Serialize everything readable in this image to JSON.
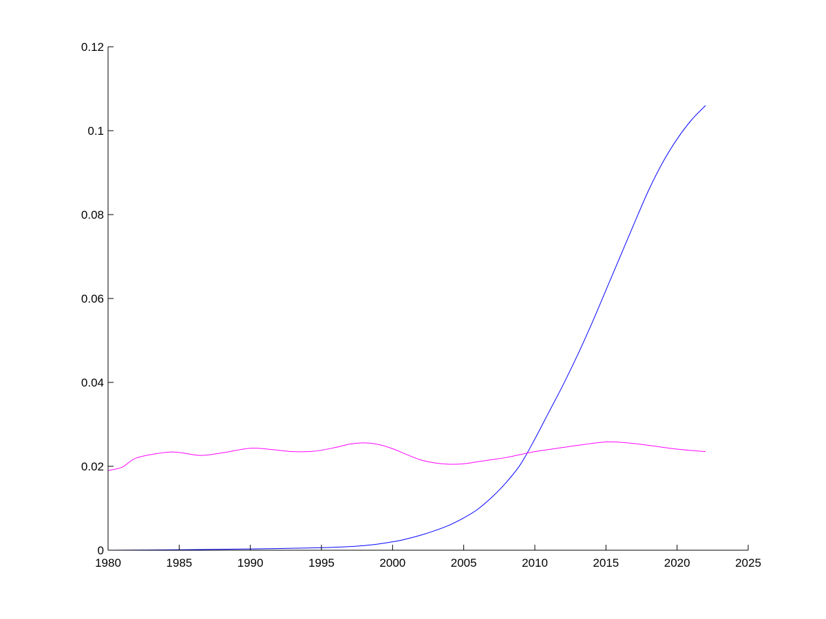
{
  "chart_data": {
    "type": "line",
    "title": "",
    "xlabel": "",
    "ylabel": "",
    "xlim": [
      1980,
      2025
    ],
    "ylim": [
      0,
      0.12
    ],
    "grid": false,
    "xticks": [
      "1980",
      "1985",
      "1990",
      "1995",
      "2000",
      "2005",
      "2010",
      "2015",
      "2020",
      "2025"
    ],
    "yticks": [
      "0",
      "0.02",
      "0.04",
      "0.06",
      "0.08",
      "0.1",
      "0.12"
    ],
    "xtick_values": [
      1980,
      1985,
      1990,
      1995,
      2000,
      2005,
      2010,
      2015,
      2020,
      2025
    ],
    "ytick_values": [
      0,
      0.02,
      0.04,
      0.06,
      0.08,
      0.1,
      0.12
    ],
    "series": [
      {
        "name": "blue series",
        "color": "#0000ff",
        "x": [
          1980,
          1985,
          1990,
          1995,
          1998,
          2000,
          2001,
          2002,
          2003,
          2004,
          2005,
          2006,
          2007,
          2008,
          2009,
          2010,
          2011,
          2012,
          2013,
          2014,
          2015,
          2016,
          2017,
          2018,
          2019,
          2020,
          2021,
          2022
        ],
        "y": [
          0,
          0.0001,
          0.0003,
          0.0006,
          0.0011,
          0.002,
          0.0027,
          0.0036,
          0.0047,
          0.006,
          0.0077,
          0.0098,
          0.0127,
          0.0162,
          0.0205,
          0.0265,
          0.033,
          0.0395,
          0.0465,
          0.054,
          0.062,
          0.07,
          0.078,
          0.0858,
          0.0925,
          0.098,
          0.1025,
          0.106
        ]
      },
      {
        "name": "magenta series",
        "color": "#ff00ff",
        "x": [
          1980,
          1981,
          1982,
          1984,
          1985,
          1986.5,
          1988,
          1990,
          1991.5,
          1993,
          1994.5,
          1996,
          1997,
          1998,
          1999,
          2000,
          2001,
          2002,
          2003,
          2004,
          2005,
          2006,
          2007,
          2008,
          2010,
          2012,
          2013,
          2015,
          2016.5,
          2018,
          2020,
          2022
        ],
        "y": [
          0.019,
          0.0198,
          0.022,
          0.0233,
          0.0233,
          0.0226,
          0.0232,
          0.0243,
          0.024,
          0.0235,
          0.0236,
          0.0245,
          0.0253,
          0.0256,
          0.0252,
          0.0242,
          0.0228,
          0.0215,
          0.0208,
          0.0205,
          0.0206,
          0.0211,
          0.0216,
          0.0221,
          0.0235,
          0.0245,
          0.025,
          0.0258,
          0.0256,
          0.025,
          0.0241,
          0.0235
        ]
      }
    ]
  }
}
